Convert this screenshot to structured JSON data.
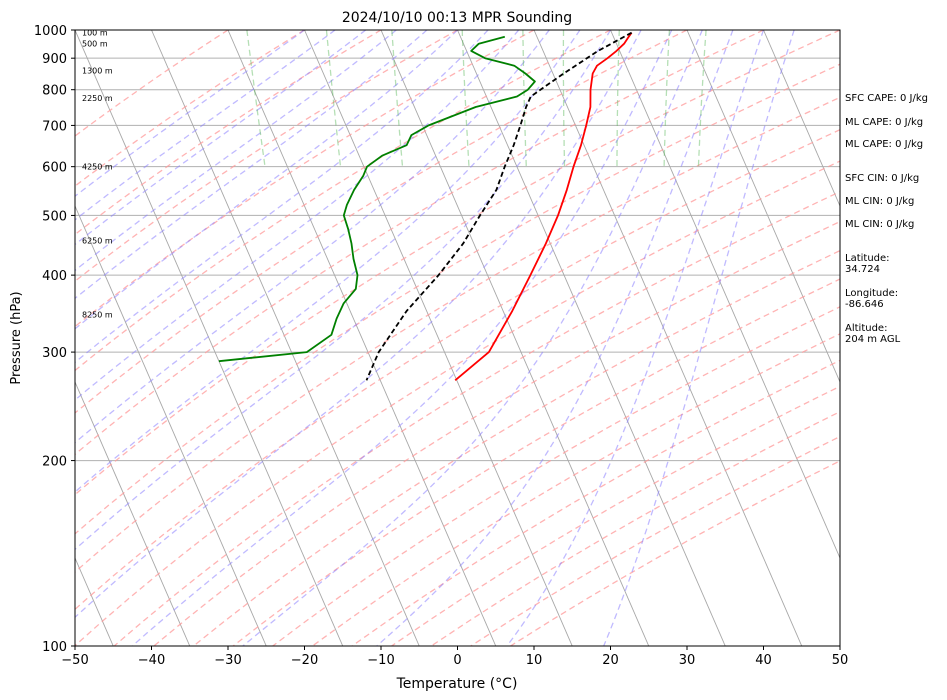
{
  "chart_data": {
    "type": "line",
    "title": "2024/10/10 00:13 MPR Sounding",
    "xlabel": "Temperature (°C)",
    "ylabel": "Pressure (hPa)",
    "xlim": [
      -50,
      50
    ],
    "ylim": [
      1000,
      100
    ],
    "y_scale": "log",
    "grid": true,
    "x_ticks": [
      "−50",
      "−40",
      "−30",
      "−20",
      "−10",
      "0",
      "10",
      "20",
      "30",
      "40",
      "50"
    ],
    "y_ticks": [
      "100",
      "200",
      "300",
      "400",
      "500",
      "600",
      "700",
      "800",
      "900",
      "1000"
    ],
    "series": [
      {
        "color": "#ff0000",
        "style": "solid",
        "pressure": [
          990,
          975,
          950,
          925,
          900,
          875,
          850,
          800,
          750,
          700,
          650,
          600,
          550,
          500,
          450,
          400,
          350,
          300,
          270
        ],
        "temperature": [
          22.6,
          22.0,
          21.0,
          19.6,
          18.0,
          16.2,
          15.2,
          14.0,
          13.0,
          11.4,
          9.6,
          7.4,
          5.2,
          2.6,
          -0.6,
          -4.4,
          -8.8,
          -14.2,
          -20.2
        ]
      },
      {
        "color": "#008000",
        "style": "solid",
        "pressure": [
          975,
          950,
          925,
          900,
          875,
          850,
          825,
          800,
          780,
          750,
          700,
          675,
          650,
          625,
          600,
          580,
          550,
          520,
          500,
          475,
          450,
          425,
          400,
          380,
          360,
          340,
          320,
          300,
          290
        ],
        "temperature": [
          5.8,
          2.0,
          0.6,
          2.0,
          5.4,
          6.4,
          7.2,
          5.8,
          4.0,
          -2.0,
          -9.2,
          -12.0,
          -13.2,
          -17.0,
          -19.6,
          -20.6,
          -22.6,
          -24.4,
          -25.4,
          -25.6,
          -26.0,
          -26.6,
          -27.0,
          -28.0,
          -30.4,
          -32.2,
          -33.8,
          -38.0,
          -50.0
        ]
      },
      {
        "color": "#000000",
        "style": "dashed",
        "pressure": [
          990,
          925,
          850,
          780,
          750,
          700,
          650,
          600,
          550,
          500,
          450,
          400,
          350,
          300,
          270
        ],
        "temperature": [
          22.6,
          17.2,
          11.4,
          5.8,
          4.6,
          2.8,
          0.8,
          -1.6,
          -4.0,
          -7.6,
          -11.4,
          -16.4,
          -22.6,
          -28.6,
          -31.8
        ]
      }
    ],
    "height_labels": [
      "8250 m",
      "6250 m",
      "4250 m",
      "2250 m",
      "1300 m",
      "500 m",
      "100 m"
    ],
    "height_label_pressures": [
      345,
      455,
      600,
      775,
      860,
      950,
      990
    ]
  },
  "side_panel": {
    "sfc_cape": "SFC CAPE: 0 J/kg",
    "ml_cape_1": "ML CAPE: 0 J/kg",
    "ml_cape_2": "ML CAPE: 0 J/kg",
    "sfc_cin": "SFC CIN: 0 J/kg",
    "ml_cin_1": "ML CIN: 0 J/kg",
    "ml_cin_2": "ML CIN: 0 J/kg",
    "latitude_label": "Latitude:",
    "latitude_value": "34.724",
    "longitude_label": "Longitude:",
    "longitude_value": "-86.646",
    "altitude_label": "Altitude:",
    "altitude_value": "204 m AGL"
  }
}
